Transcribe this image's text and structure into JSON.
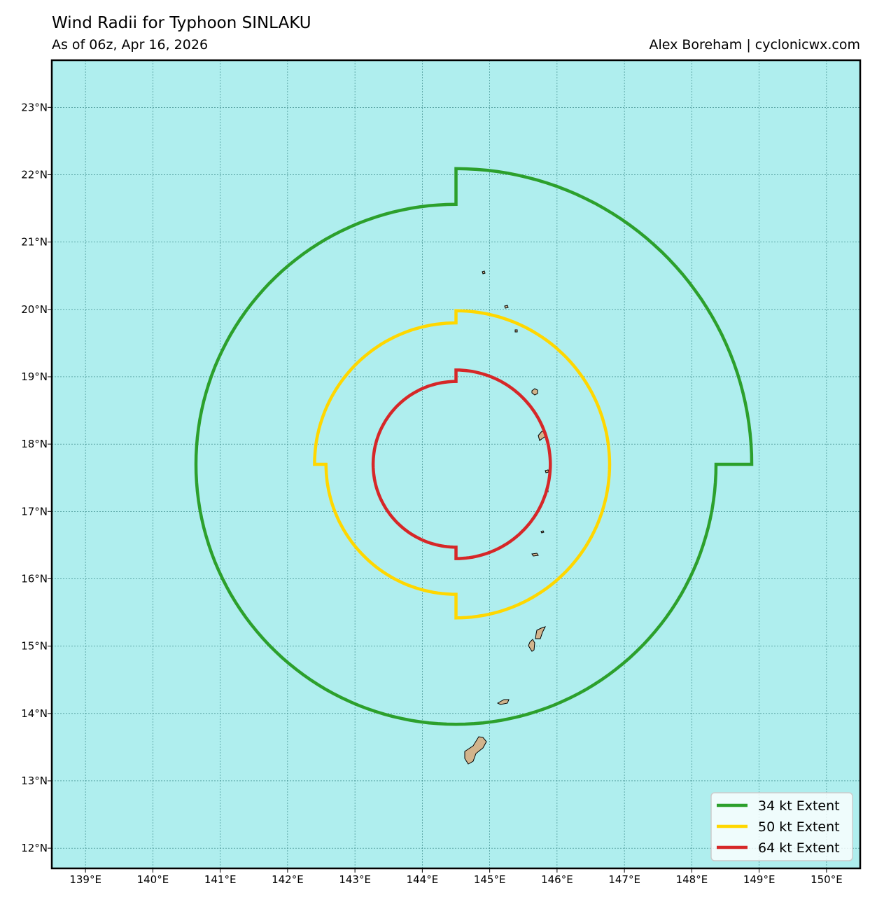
{
  "header": {
    "title": "Wind Radii for Typhoon SINLAKU",
    "subtitle": "As of 06z, Apr 16, 2026",
    "credit": "Alex Boreham | cyclonicwx.com"
  },
  "map": {
    "lon_range": [
      138.5,
      150.5
    ],
    "lat_range": [
      11.7,
      23.7
    ],
    "lon_ticks": [
      "139°E",
      "140°E",
      "141°E",
      "142°E",
      "143°E",
      "144°E",
      "145°E",
      "146°E",
      "147°E",
      "148°E",
      "149°E",
      "150°E"
    ],
    "lat_ticks": [
      "23°N",
      "22°N",
      "21°N",
      "20°N",
      "19°N",
      "18°N",
      "17°N",
      "16°N",
      "15°N",
      "14°N",
      "13°N",
      "12°N"
    ],
    "ocean_color": "#afeeee",
    "land_color": "#d2b48c",
    "grid": true
  },
  "storm": {
    "center_lon": 144.5,
    "center_lat": 17.7
  },
  "radii": [
    {
      "label": "34 kt Extent",
      "color": "#2ca02c",
      "ne_deg": 4.39,
      "se_deg": 3.86,
      "sw_deg": 3.86,
      "nw_deg": 3.86
    },
    {
      "label": "50 kt Extent",
      "color": "#ffd700",
      "ne_deg": 2.28,
      "se_deg": 2.28,
      "sw_deg": 1.93,
      "nw_deg": 2.1
    },
    {
      "label": "64 kt Extent",
      "color": "#d62728",
      "ne_deg": 1.4,
      "se_deg": 1.4,
      "sw_deg": 1.23,
      "nw_deg": 1.23
    }
  ],
  "legend": {
    "items": [
      {
        "label": "34 kt Extent",
        "color": "#2ca02c"
      },
      {
        "label": "50 kt Extent",
        "color": "#ffd700"
      },
      {
        "label": "64 kt Extent",
        "color": "#d62728"
      }
    ]
  }
}
